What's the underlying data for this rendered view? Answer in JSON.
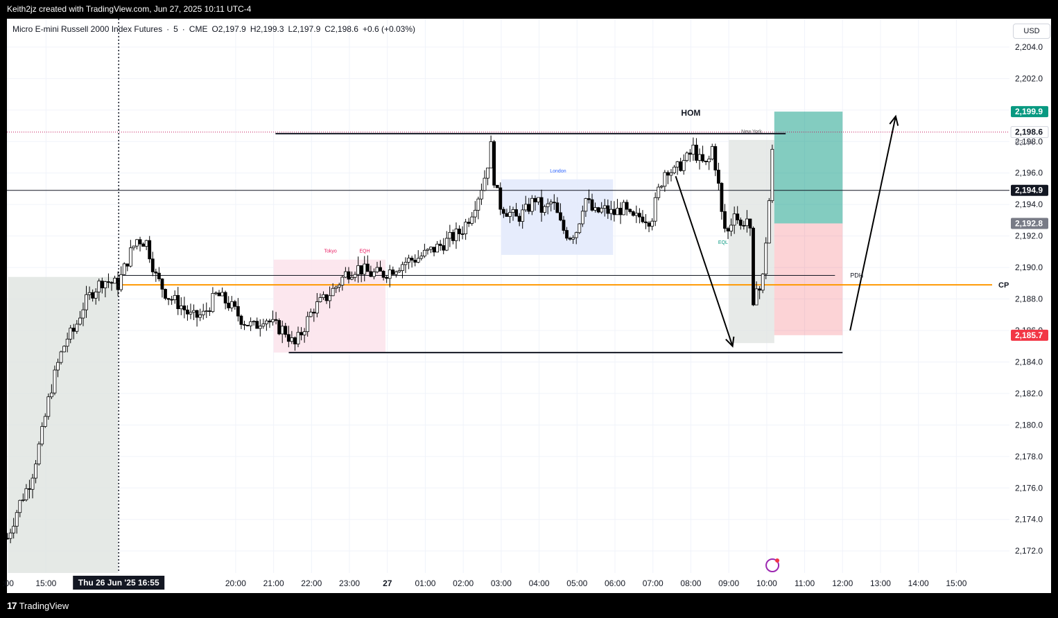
{
  "header": {
    "attribution": "Keith2jz created with TradingView.com, Jun 27, 2025 10:11 UTC-4"
  },
  "footer": {
    "logo_mark": "17",
    "brand": "TradingView"
  },
  "legend": {
    "symbol": "Micro E-mini Russell 2000 Index Futures",
    "interval": "5",
    "exchange": "CME",
    "open": "O2,197.9",
    "high": "H2,199.3",
    "low": "L2,197.9",
    "close": "C2,198.6",
    "change": "+0.6 (+0.03%)"
  },
  "currency_button": "USD",
  "chart_data": {
    "type": "candlestick",
    "x_tick_labels": [
      ":00",
      "15:00",
      "Thu 26 Jun '25   16:55",
      "20:00",
      "21:00",
      "22:00",
      "23:00",
      "27",
      "01:00",
      "02:00",
      "03:00",
      "04:00",
      "05:00",
      "06:00",
      "07:00",
      "08:00",
      "09:00",
      "10:00",
      "11:00",
      "12:00",
      "13:00",
      "14:00",
      "15:00"
    ],
    "x_tick_hours": [
      14,
      15,
      16.9167,
      20,
      21,
      22,
      23,
      24,
      25,
      26,
      27,
      28,
      29,
      30,
      31,
      32,
      33,
      34,
      35,
      36,
      37,
      38,
      39
    ],
    "y_tick_labels": [
      "2,172.0",
      "2,174.0",
      "2,176.0",
      "2,178.0",
      "2,180.0",
      "2,182.0",
      "2,184.0",
      "2,186.0",
      "2,188.0",
      "2,190.0",
      "2,192.0",
      "2,194.0",
      "2,196.0",
      "2,198.0",
      "2,200.0",
      "2,202.0",
      "2,204.0"
    ],
    "y_tick_values": [
      2172,
      2174,
      2176,
      2178,
      2180,
      2182,
      2184,
      2186,
      2188,
      2190,
      2192,
      2194,
      2196,
      2198,
      2200,
      2202,
      2204
    ],
    "xlim_hours": [
      13.97,
      40.4
    ],
    "ylim": [
      2170.6,
      2205.8
    ],
    "price_path": [
      [
        13.98,
        2172.8
      ],
      [
        14.3,
        2175.0
      ],
      [
        14.6,
        2176.5
      ],
      [
        14.9,
        2179.5
      ],
      [
        15.1,
        2182.0
      ],
      [
        15.35,
        2184.2
      ],
      [
        15.55,
        2185.5
      ],
      [
        15.75,
        2186.0
      ],
      [
        15.95,
        2187.4
      ],
      [
        16.2,
        2188.4
      ],
      [
        16.5,
        2189.2
      ],
      [
        16.9,
        2188.9
      ],
      [
        17.2,
        2190.8
      ],
      [
        17.4,
        2191.8
      ],
      [
        17.65,
        2191.6
      ],
      [
        17.9,
        2189.4
      ],
      [
        18.2,
        2188.2
      ],
      [
        18.55,
        2187.6
      ],
      [
        18.85,
        2186.8
      ],
      [
        19.15,
        2187.0
      ],
      [
        19.5,
        2188.3
      ],
      [
        19.85,
        2187.6
      ],
      [
        20.2,
        2186.6
      ],
      [
        20.5,
        2186.2
      ],
      [
        20.75,
        2186.9
      ],
      [
        21.0,
        2186.3
      ],
      [
        21.3,
        2186.0
      ],
      [
        21.55,
        2185.0
      ],
      [
        21.8,
        2186.2
      ],
      [
        22.05,
        2187.4
      ],
      [
        22.35,
        2188.0
      ],
      [
        22.65,
        2188.8
      ],
      [
        22.9,
        2189.6
      ],
      [
        23.2,
        2190.0
      ],
      [
        23.55,
        2189.6
      ],
      [
        23.9,
        2189.6
      ],
      [
        24.2,
        2190.0
      ],
      [
        24.5,
        2190.4
      ],
      [
        24.8,
        2190.6
      ],
      [
        25.1,
        2191.0
      ],
      [
        25.4,
        2191.4
      ],
      [
        25.7,
        2191.9
      ],
      [
        25.95,
        2192.3
      ],
      [
        26.2,
        2193.4
      ],
      [
        26.45,
        2194.9
      ],
      [
        26.62,
        2196.2
      ],
      [
        26.72,
        2197.9
      ],
      [
        26.82,
        2195.5
      ],
      [
        26.95,
        2194.0
      ],
      [
        27.15,
        2193.6
      ],
      [
        27.4,
        2193.1
      ],
      [
        27.65,
        2193.6
      ],
      [
        27.9,
        2194.4
      ],
      [
        28.1,
        2193.5
      ],
      [
        28.35,
        2194.2
      ],
      [
        28.6,
        2192.5
      ],
      [
        28.8,
        2192.0
      ],
      [
        29.0,
        2192.4
      ],
      [
        29.2,
        2194.5
      ],
      [
        29.45,
        2193.4
      ],
      [
        29.7,
        2193.7
      ],
      [
        29.95,
        2193.4
      ],
      [
        30.2,
        2193.8
      ],
      [
        30.45,
        2193.0
      ],
      [
        30.7,
        2193.3
      ],
      [
        30.95,
        2193.0
      ],
      [
        31.15,
        2194.9
      ],
      [
        31.35,
        2196.4
      ],
      [
        31.55,
        2196.0
      ],
      [
        31.75,
        2196.6
      ],
      [
        31.95,
        2197.0
      ],
      [
        32.05,
        2197.6
      ],
      [
        32.25,
        2196.7
      ],
      [
        32.45,
        2196.4
      ],
      [
        32.55,
        2197.8
      ],
      [
        32.7,
        2195.8
      ],
      [
        32.85,
        2192.6
      ],
      [
        33.0,
        2192.2
      ],
      [
        33.15,
        2193.8
      ],
      [
        33.3,
        2192.5
      ],
      [
        33.45,
        2193.2
      ],
      [
        33.55,
        2192.9
      ],
      [
        33.65,
        2187.0
      ],
      [
        33.75,
        2189.6
      ],
      [
        33.85,
        2188.0
      ],
      [
        33.95,
        2190.9
      ],
      [
        34.05,
        2193.7
      ],
      [
        34.12,
        2196.6
      ],
      [
        34.2,
        2198.6
      ]
    ],
    "annotations": {
      "HOM": "HOM",
      "sessions": {
        "tokyo": "Tokyo",
        "london": "London",
        "new_york": "New York"
      },
      "EQH": "EQH",
      "EQL": "EQL",
      "PDH": "PDH",
      "CP": "CP"
    },
    "levels": {
      "hom_line": 2198.5,
      "pdh": 2189.5,
      "cp": 2188.9,
      "low_line": 2184.6,
      "mid_line": 2194.9
    },
    "zones": {
      "prior_session_range": [
        14.0,
        16.9,
        2170.6,
        2189.4
      ],
      "tokyo_range": [
        21.0,
        23.95,
        2184.6,
        2190.5
      ],
      "london_range": [
        27.0,
        29.95,
        2190.8,
        2195.6
      ],
      "ny_range": [
        33.0,
        34.2,
        2185.2,
        2198.1
      ],
      "position_target": [
        34.2,
        36.0,
        2192.8,
        2199.9
      ],
      "position_stop": [
        34.2,
        36.0,
        2185.7,
        2192.8
      ]
    },
    "drawn_arrows": [
      {
        "from": [
          31.6,
          2195.8
        ],
        "to": [
          33.1,
          2185.0
        ]
      },
      {
        "from": [
          36.2,
          2186.0
        ],
        "to": [
          37.4,
          2199.6
        ]
      }
    ],
    "price_labels": [
      {
        "text": "2,199.9",
        "value": 2199.9,
        "color": "#089981"
      },
      {
        "text": "2,198.6",
        "value": 2198.6,
        "color": "#ffffff",
        "countdown": "03:44"
      },
      {
        "text": "2,194.9",
        "value": 2194.9,
        "color": "#131722"
      },
      {
        "text": "2,192.8",
        "value": 2192.8,
        "color": "#787b86"
      },
      {
        "text": "2,185.7",
        "value": 2185.7,
        "color": "#f23645"
      }
    ],
    "crosshair_hour": 16.9167,
    "colors": {
      "up": "#ffffff",
      "down": "#000000",
      "cp_line": "#ff9800",
      "tokyo": "#fce4ec",
      "london": "#e3eafc",
      "target": "#089981",
      "stop": "#f23645"
    }
  }
}
